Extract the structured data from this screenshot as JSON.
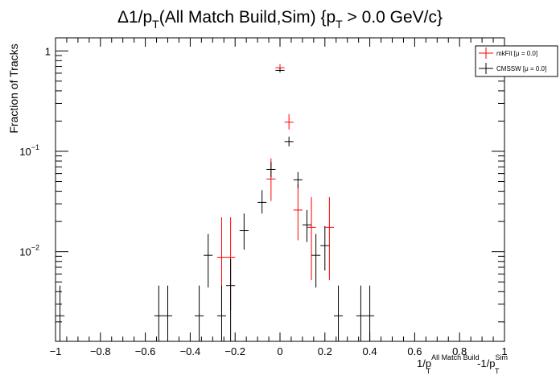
{
  "chart_data": {
    "type": "scatter",
    "title": {
      "prefix": "Δ1/p",
      "sub1": "T",
      "middle": "(All Match Build,Sim) {p",
      "sub2": "T",
      "suffix": " > 0.0 GeV/c}"
    },
    "xlabel": {
      "a": "1/p",
      "a_sup": "All Match Build",
      "a_sub": "T",
      "b": "-1/p",
      "b_sup": "Sim",
      "b_sub": "T"
    },
    "ylabel": "Fraction of Tracks",
    "xlim": [
      -1,
      1
    ],
    "ylim": [
      0.00128,
      1.35
    ],
    "yscale": "log",
    "x_ticks": [
      "−1",
      "−0.8",
      "−0.6",
      "−0.4",
      "−0.2",
      "0",
      "0.2",
      "0.4",
      "0.6",
      "0.8",
      "1"
    ],
    "y_ticks": [
      {
        "value": 1,
        "base": "1",
        "exp": ""
      },
      {
        "value": 0.1,
        "base": "10",
        "exp": "−1"
      },
      {
        "value": 0.01,
        "base": "10",
        "exp": "−2"
      }
    ],
    "legend_position": "top-right",
    "series": [
      {
        "name": "mkFit  [μ = 0.0]",
        "color": "#ff0000",
        "xerr": 0.02,
        "points": [
          {
            "x": -0.26,
            "y": 0.0088,
            "ylo": 0.0026,
            "yhi": 0.022
          },
          {
            "x": -0.22,
            "y": 0.0088,
            "ylo": 0.0026,
            "yhi": 0.022
          },
          {
            "x": -0.04,
            "y": 0.053,
            "ylo": 0.032,
            "yhi": 0.085
          },
          {
            "x": 0.0,
            "y": 0.68,
            "ylo": 0.62,
            "yhi": 0.74
          },
          {
            "x": 0.04,
            "y": 0.195,
            "ylo": 0.165,
            "yhi": 0.235
          },
          {
            "x": 0.08,
            "y": 0.026,
            "ylo": 0.013,
            "yhi": 0.047
          },
          {
            "x": 0.14,
            "y": 0.0175,
            "ylo": 0.0052,
            "yhi": 0.035
          },
          {
            "x": 0.22,
            "y": 0.0175,
            "ylo": 0.0052,
            "yhi": 0.035
          }
        ]
      },
      {
        "name": "CMSSW  [μ = 0.0]",
        "color": "#000000",
        "xerr": 0.02,
        "points": [
          {
            "x": -0.98,
            "y": 0.0023,
            "ylo": 0.00128,
            "yhi": 0.0046
          },
          {
            "x": -0.54,
            "y": 0.0023,
            "ylo": 0.00128,
            "yhi": 0.0046
          },
          {
            "x": -0.5,
            "y": 0.0023,
            "ylo": 0.00128,
            "yhi": 0.0046
          },
          {
            "x": -0.36,
            "y": 0.0023,
            "ylo": 0.00128,
            "yhi": 0.0046
          },
          {
            "x": -0.32,
            "y": 0.0092,
            "ylo": 0.0044,
            "yhi": 0.015
          },
          {
            "x": -0.26,
            "y": 0.0023,
            "ylo": 0.00128,
            "yhi": 0.0046
          },
          {
            "x": -0.22,
            "y": 0.0046,
            "ylo": 0.00128,
            "yhi": 0.0085
          },
          {
            "x": -0.16,
            "y": 0.0162,
            "ylo": 0.0105,
            "yhi": 0.024
          },
          {
            "x": -0.08,
            "y": 0.031,
            "ylo": 0.024,
            "yhi": 0.041
          },
          {
            "x": -0.04,
            "y": 0.066,
            "ylo": 0.055,
            "yhi": 0.078
          },
          {
            "x": 0.0,
            "y": 0.64,
            "ylo": 0.61,
            "yhi": 0.67
          },
          {
            "x": 0.04,
            "y": 0.125,
            "ylo": 0.112,
            "yhi": 0.14
          },
          {
            "x": 0.08,
            "y": 0.052,
            "ylo": 0.043,
            "yhi": 0.062
          },
          {
            "x": 0.12,
            "y": 0.0185,
            "ylo": 0.0125,
            "yhi": 0.026
          },
          {
            "x": 0.16,
            "y": 0.0092,
            "ylo": 0.0044,
            "yhi": 0.015
          },
          {
            "x": 0.2,
            "y": 0.0115,
            "ylo": 0.0065,
            "yhi": 0.018
          },
          {
            "x": 0.26,
            "y": 0.0023,
            "ylo": 0.00128,
            "yhi": 0.0046
          },
          {
            "x": 0.36,
            "y": 0.0023,
            "ylo": 0.00128,
            "yhi": 0.0046
          },
          {
            "x": 0.4,
            "y": 0.0023,
            "ylo": 0.00128,
            "yhi": 0.0046
          }
        ]
      }
    ]
  }
}
